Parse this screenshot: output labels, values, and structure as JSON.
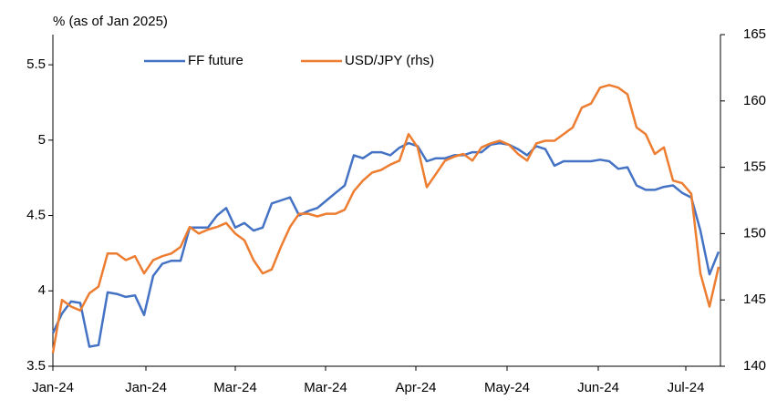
{
  "chart_data": {
    "type": "line",
    "title": "% (as of Jan 2025)",
    "xlim": [
      0,
      73.2
    ],
    "xticks": [
      {
        "value": 0,
        "label": "Jan-24"
      },
      {
        "value": 10.2,
        "label": "Jan-24"
      },
      {
        "value": 20,
        "label": "Mar-24"
      },
      {
        "value": 29.9,
        "label": "Mar-24"
      },
      {
        "value": 39.8,
        "label": "Apr-24"
      },
      {
        "value": 49.8,
        "label": "May-24"
      },
      {
        "value": 59.8,
        "label": "Jun-24"
      },
      {
        "value": 69.4,
        "label": "Jul-24"
      }
    ],
    "ylim": [
      3.5,
      5.7
    ],
    "yticks": [
      3.5,
      4,
      4.5,
      5,
      5.5
    ],
    "y2lim": [
      140,
      165
    ],
    "y2ticks": [
      140,
      145,
      150,
      155,
      160,
      165
    ],
    "legend": "top",
    "series": [
      {
        "name": "FF future",
        "color": "#4472c4",
        "values": [
          3.72,
          3.85,
          3.93,
          3.92,
          3.63,
          3.64,
          3.99,
          3.98,
          3.96,
          3.97,
          3.84,
          4.1,
          4.18,
          4.2,
          4.2,
          4.42,
          4.42,
          4.42,
          4.5,
          4.55,
          4.42,
          4.45,
          4.4,
          4.42,
          4.58,
          4.6,
          4.62,
          4.5,
          4.53,
          4.55,
          4.6,
          4.65,
          4.7,
          4.9,
          4.88,
          4.92,
          4.92,
          4.9,
          4.95,
          4.98,
          4.96,
          4.86,
          4.88,
          4.88,
          4.9,
          4.9,
          4.92,
          4.92,
          4.97,
          4.98,
          4.97,
          4.94,
          4.9,
          4.96,
          4.94,
          4.83,
          4.86,
          4.86,
          4.86,
          4.86,
          4.87,
          4.86,
          4.81,
          4.82,
          4.7,
          4.67,
          4.67,
          4.69,
          4.7,
          4.65,
          4.62,
          4.4,
          4.11,
          4.26
        ]
      },
      {
        "name": "USD/JPY (rhs)",
        "color": "#ed7d31",
        "axis": "y2",
        "values": [
          141,
          145,
          144.5,
          144.2,
          145.5,
          146,
          148.5,
          148.5,
          148,
          148.3,
          147,
          148,
          148.3,
          148.5,
          149,
          150.5,
          150,
          150.3,
          150.5,
          150.8,
          150,
          149.5,
          148,
          147,
          147.3,
          149,
          150.5,
          151.5,
          151.5,
          151.3,
          151.5,
          151.5,
          151.8,
          153.2,
          154,
          154.6,
          154.8,
          155.2,
          155.5,
          157.5,
          156.5,
          153.5,
          154.5,
          155.5,
          155.8,
          156,
          155.5,
          156.5,
          156.8,
          157,
          156.7,
          156,
          155.5,
          156.8,
          157,
          157,
          157.5,
          158,
          159.5,
          159.8,
          161,
          161.2,
          161,
          160.5,
          158,
          157.5,
          156,
          156.5,
          154,
          153.8,
          153,
          147,
          144.5,
          147.5
        ]
      }
    ]
  }
}
